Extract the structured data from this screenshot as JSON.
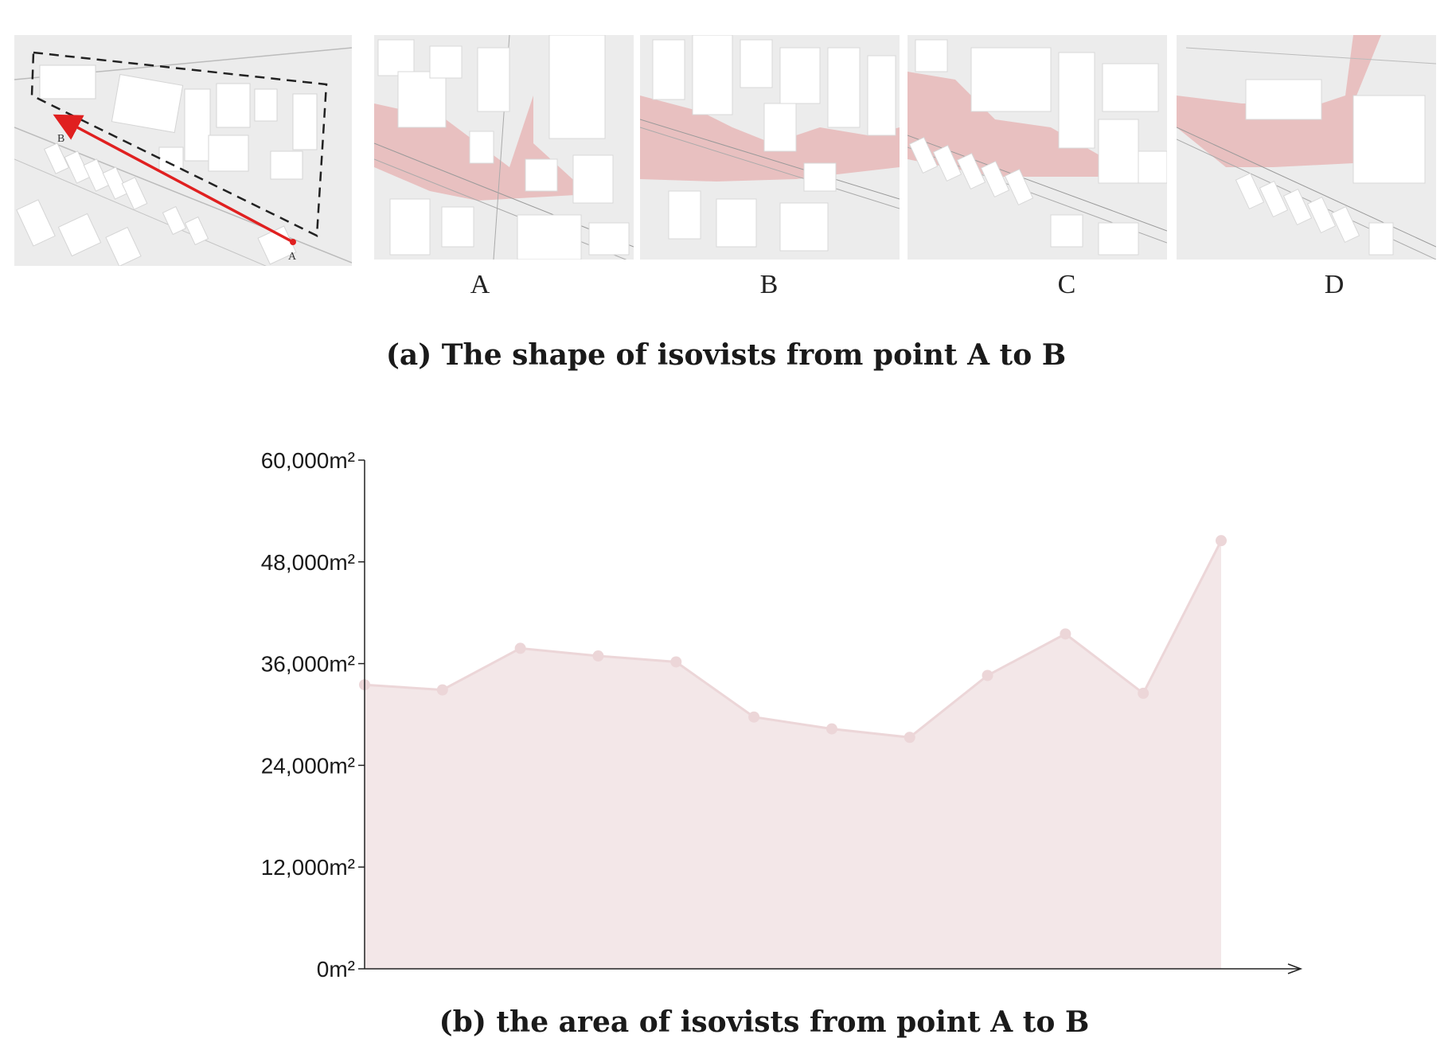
{
  "figure_a": {
    "panels": [
      {
        "label": ""
      },
      {
        "label": "A"
      },
      {
        "label": "B"
      },
      {
        "label": "C"
      },
      {
        "label": "D"
      }
    ],
    "path_start_label": "A",
    "path_end_label": "B",
    "caption": "(a) The shape of isovists from point A to B",
    "colors": {
      "isovist": "#e8b8b8",
      "path": "#e02020",
      "building": "#ffffff",
      "ground": "#e9e9e9"
    }
  },
  "chart_data": {
    "type": "area",
    "title": "",
    "caption": "(b) the area of isovists from point A to B",
    "xlabel": "",
    "ylabel": "",
    "y_unit": "m²",
    "ylim": [
      0,
      60000
    ],
    "yticks": [
      "0m²",
      "12,000m²",
      "24,000m²",
      "36,000m²",
      "48,000m²",
      "60,000m²"
    ],
    "ytick_values": [
      0,
      12000,
      24000,
      36000,
      48000,
      60000
    ],
    "x": [
      0,
      1,
      2,
      3,
      4,
      5,
      6,
      7,
      8,
      9,
      10,
      11
    ],
    "series": [
      {
        "values": [
          33500,
          32900,
          37800,
          36900,
          36200,
          29700,
          28300,
          27300,
          34600,
          39500,
          32500,
          50500
        ]
      }
    ],
    "grid": false,
    "legend": "none",
    "colors": {
      "fill": "#f3e7e8",
      "line": "#ecd6d8",
      "axis": "#222222"
    }
  }
}
